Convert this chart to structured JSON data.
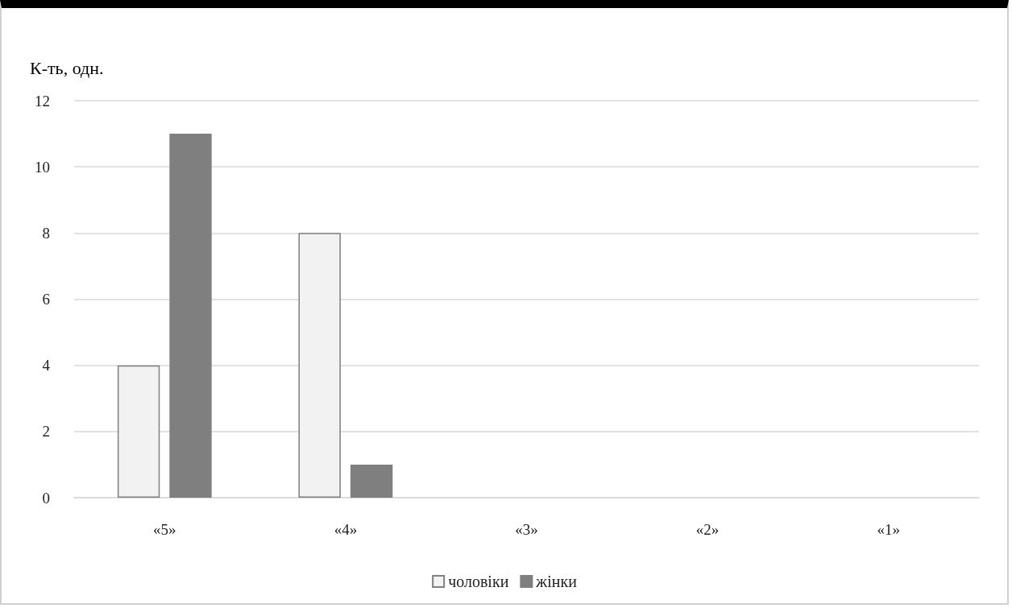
{
  "chart_data": {
    "type": "bar",
    "ylabel": "К-ть, одн.",
    "categories": [
      "«5»",
      "«4»",
      "«3»",
      "«2»",
      "«1»"
    ],
    "series": [
      {
        "name": "чоловіки",
        "color": "#f2f2f2",
        "values": [
          4,
          8,
          0,
          0,
          0
        ]
      },
      {
        "name": "жінки",
        "color": "#7f7f7f",
        "values": [
          11,
          1,
          0,
          0,
          0
        ]
      }
    ],
    "ylim": [
      0,
      12
    ],
    "yticks": [
      0,
      2,
      4,
      6,
      8,
      10,
      12
    ],
    "grid": "y",
    "legend": "bottom"
  }
}
